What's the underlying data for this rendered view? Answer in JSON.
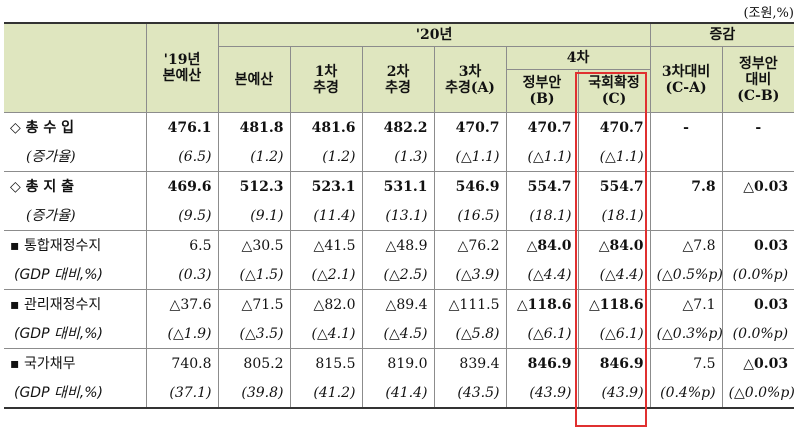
{
  "unit": "(조원,%)",
  "header": {
    "y20": "'20년",
    "change": "증감",
    "y19": "'19년\n본예산",
    "main": "본예산",
    "supp1": "1차\n추경",
    "supp2": "2차\n추경",
    "supp3": "3차\n추경(A)",
    "fourth": "4차",
    "gov": "정부안\n(B)",
    "confirmed": "국회확정\n(C)",
    "vs3": "3차대비\n(C-A)",
    "vsgov": "정부안\n대비\n(C-B)"
  },
  "rows": [
    {
      "label": "◇ 총 수 입",
      "cells": [
        "476.1",
        "481.8",
        "481.6",
        "482.2",
        "470.7",
        "470.7",
        "470.7",
        "-",
        "-"
      ],
      "kind": "main"
    },
    {
      "label": "(증가율)",
      "cells": [
        "(6.5)",
        "(1.2)",
        "(1.2)",
        "(1.3)",
        "(△1.1)",
        "(△1.1)",
        "(△1.1)",
        "",
        ""
      ],
      "kind": "sub"
    },
    {
      "label": "◇ 총 지 출",
      "cells": [
        "469.6",
        "512.3",
        "523.1",
        "531.1",
        "546.9",
        "554.7",
        "554.7",
        "7.8",
        "△0.03"
      ],
      "kind": "main"
    },
    {
      "label": "(증가율)",
      "cells": [
        "(9.5)",
        "(9.1)",
        "(11.4)",
        "(13.1)",
        "(16.5)",
        "(18.1)",
        "(18.1)",
        "",
        ""
      ],
      "kind": "sub"
    },
    {
      "label": "▪ 통합재정수지",
      "cells": [
        "6.5",
        "△30.5",
        "△41.5",
        "△48.9",
        "△76.2",
        "△84.0",
        "△84.0",
        "△7.8",
        "0.03"
      ],
      "kind": "bullet"
    },
    {
      "label": "(GDP 대비,%)",
      "cells": [
        "(0.3)",
        "(△1.5)",
        "(△2.1)",
        "(△2.5)",
        "(△3.9)",
        "(△4.4)",
        "(△4.4)",
        "(△0.5%p)",
        "(0.0%p)"
      ],
      "kind": "gdp"
    },
    {
      "label": "▪ 관리재정수지",
      "cells": [
        "△37.6",
        "△71.5",
        "△82.0",
        "△89.4",
        "△111.5",
        "△118.6",
        "△118.6",
        "△7.1",
        "0.03"
      ],
      "kind": "bullet"
    },
    {
      "label": "(GDP 대비,%)",
      "cells": [
        "(△1.9)",
        "(△3.5)",
        "(△4.1)",
        "(△4.5)",
        "(△5.8)",
        "(△6.1)",
        "(△6.1)",
        "(△0.3%p)",
        "(0.0%p)"
      ],
      "kind": "gdp"
    },
    {
      "label": "▪ 국가채무",
      "cells": [
        "740.8",
        "805.2",
        "815.5",
        "819.0",
        "839.4",
        "846.9",
        "846.9",
        "7.5",
        "△0.03"
      ],
      "kind": "bullet"
    },
    {
      "label": "(GDP 대비,%)",
      "cells": [
        "(37.1)",
        "(39.8)",
        "(41.2)",
        "(41.4)",
        "(43.5)",
        "(43.9)",
        "(43.9)",
        "(0.4%p)",
        "(△0.0%p)"
      ],
      "kind": "gdp"
    }
  ],
  "colors": {
    "header_bg": "#dfe6bf",
    "highlight": "#e03030"
  }
}
